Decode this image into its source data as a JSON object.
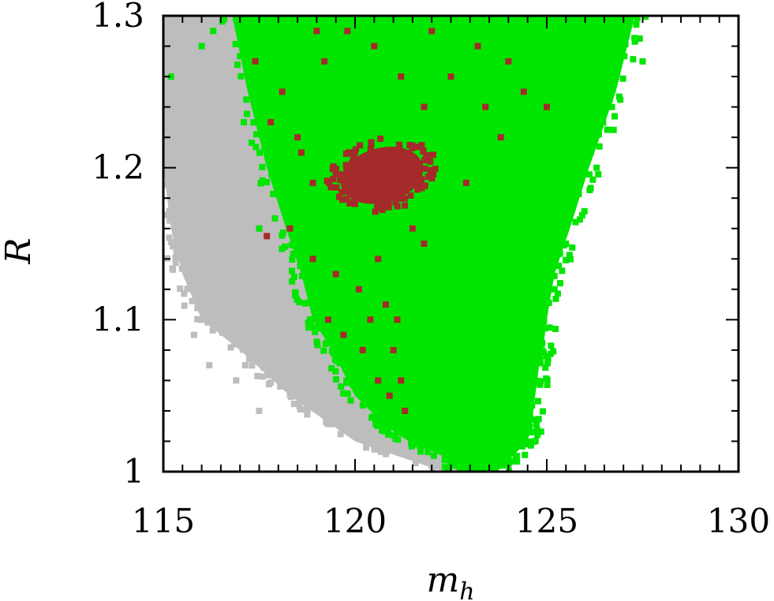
{
  "chart_data": {
    "type": "scatter",
    "title": "",
    "xlabel": "m",
    "xlabel_subscript": "h",
    "ylabel": "R",
    "xlim": [
      115,
      130
    ],
    "ylim": [
      1.0,
      1.3
    ],
    "xticks": [
      "115",
      "120",
      "125",
      "130"
    ],
    "yticks": [
      "1",
      "1.1",
      "1.2",
      "1.3"
    ],
    "xtick_values": [
      115,
      120,
      125,
      130
    ],
    "ytick_values": [
      1.0,
      1.1,
      1.2,
      1.3
    ],
    "x_minor_step": 0.5,
    "y_minor_step": 0.02,
    "grid": false,
    "legend": "none",
    "series": [
      {
        "color": "#bdbdbd",
        "region": {
          "y": [
            1.0,
            1.02,
            1.05,
            1.08,
            1.1,
            1.13,
            1.16,
            1.2,
            1.23,
            1.26,
            1.3
          ],
          "x_min": [
            122.3,
            120.0,
            118.3,
            117.0,
            116.0,
            115.5,
            115.2,
            115.0,
            115.0,
            115.0,
            115.0
          ],
          "x_max": [
            123.0,
            122.7,
            122.2,
            121.5,
            121.0,
            120.4,
            119.8,
            119.0,
            118.4,
            117.6,
            117.0
          ]
        },
        "scatter": [
          [
            116.2,
            1.07
          ],
          [
            115.8,
            1.09
          ],
          [
            117.5,
            1.04
          ],
          [
            118.4,
            1.05
          ],
          [
            116.9,
            1.06
          ],
          [
            115.3,
            1.25
          ],
          [
            116.6,
            1.1
          ]
        ]
      },
      {
        "color": "#00e600",
        "region": {
          "y": [
            1.0,
            1.01,
            1.02,
            1.03,
            1.05,
            1.07,
            1.08,
            1.1,
            1.13,
            1.16,
            1.2,
            1.25,
            1.3
          ],
          "x_min": [
            122.7,
            122.3,
            121.4,
            120.8,
            120.0,
            119.6,
            119.4,
            118.9,
            118.6,
            118.2,
            117.7,
            117.2,
            116.8
          ],
          "x_max": [
            123.7,
            124.1,
            124.5,
            124.6,
            124.7,
            124.8,
            124.9,
            125.0,
            125.2,
            125.6,
            126.1,
            126.8,
            127.3
          ]
        },
        "scatter": [
          [
            115.2,
            1.26
          ],
          [
            116.0,
            1.28
          ],
          [
            117.1,
            1.23
          ],
          [
            116.3,
            1.29
          ],
          [
            125.5,
            1.15
          ],
          [
            126.3,
            1.2
          ],
          [
            127.0,
            1.29
          ],
          [
            127.5,
            1.27
          ],
          [
            125.2,
            1.12
          ],
          [
            126.7,
            1.24
          ],
          [
            117.5,
            1.16
          ]
        ]
      },
      {
        "color": "#a52a2a",
        "region": {
          "cx": 120.7,
          "cy": 1.195,
          "rx": 1.1,
          "ry": 0.018,
          "angle_deg": -15
        },
        "scatter": [
          [
            117.4,
            1.27
          ],
          [
            118.1,
            1.25
          ],
          [
            117.8,
            1.23
          ],
          [
            118.5,
            1.22
          ],
          [
            119.2,
            1.27
          ],
          [
            119.8,
            1.29
          ],
          [
            120.5,
            1.28
          ],
          [
            121.2,
            1.26
          ],
          [
            121.8,
            1.24
          ],
          [
            122.5,
            1.26
          ],
          [
            123.2,
            1.28
          ],
          [
            123.8,
            1.22
          ],
          [
            124.4,
            1.25
          ],
          [
            125.0,
            1.24
          ],
          [
            118.3,
            1.16
          ],
          [
            118.9,
            1.14
          ],
          [
            119.5,
            1.13
          ],
          [
            120.1,
            1.12
          ],
          [
            120.6,
            1.14
          ],
          [
            121.5,
            1.16
          ],
          [
            121.8,
            1.15
          ],
          [
            119.3,
            1.1
          ],
          [
            119.7,
            1.09
          ],
          [
            120.2,
            1.08
          ],
          [
            120.4,
            1.1
          ],
          [
            120.6,
            1.06
          ],
          [
            120.9,
            1.05
          ],
          [
            121.0,
            1.08
          ],
          [
            121.2,
            1.06
          ],
          [
            121.3,
            1.04
          ],
          [
            121.1,
            1.1
          ],
          [
            120.8,
            1.11
          ],
          [
            117.7,
            1.155
          ],
          [
            118.6,
            1.21
          ],
          [
            122.9,
            1.19
          ],
          [
            123.4,
            1.24
          ],
          [
            119.0,
            1.29
          ],
          [
            122.0,
            1.29
          ],
          [
            124.0,
            1.27
          ],
          [
            118.9,
            1.19
          ]
        ]
      }
    ]
  }
}
